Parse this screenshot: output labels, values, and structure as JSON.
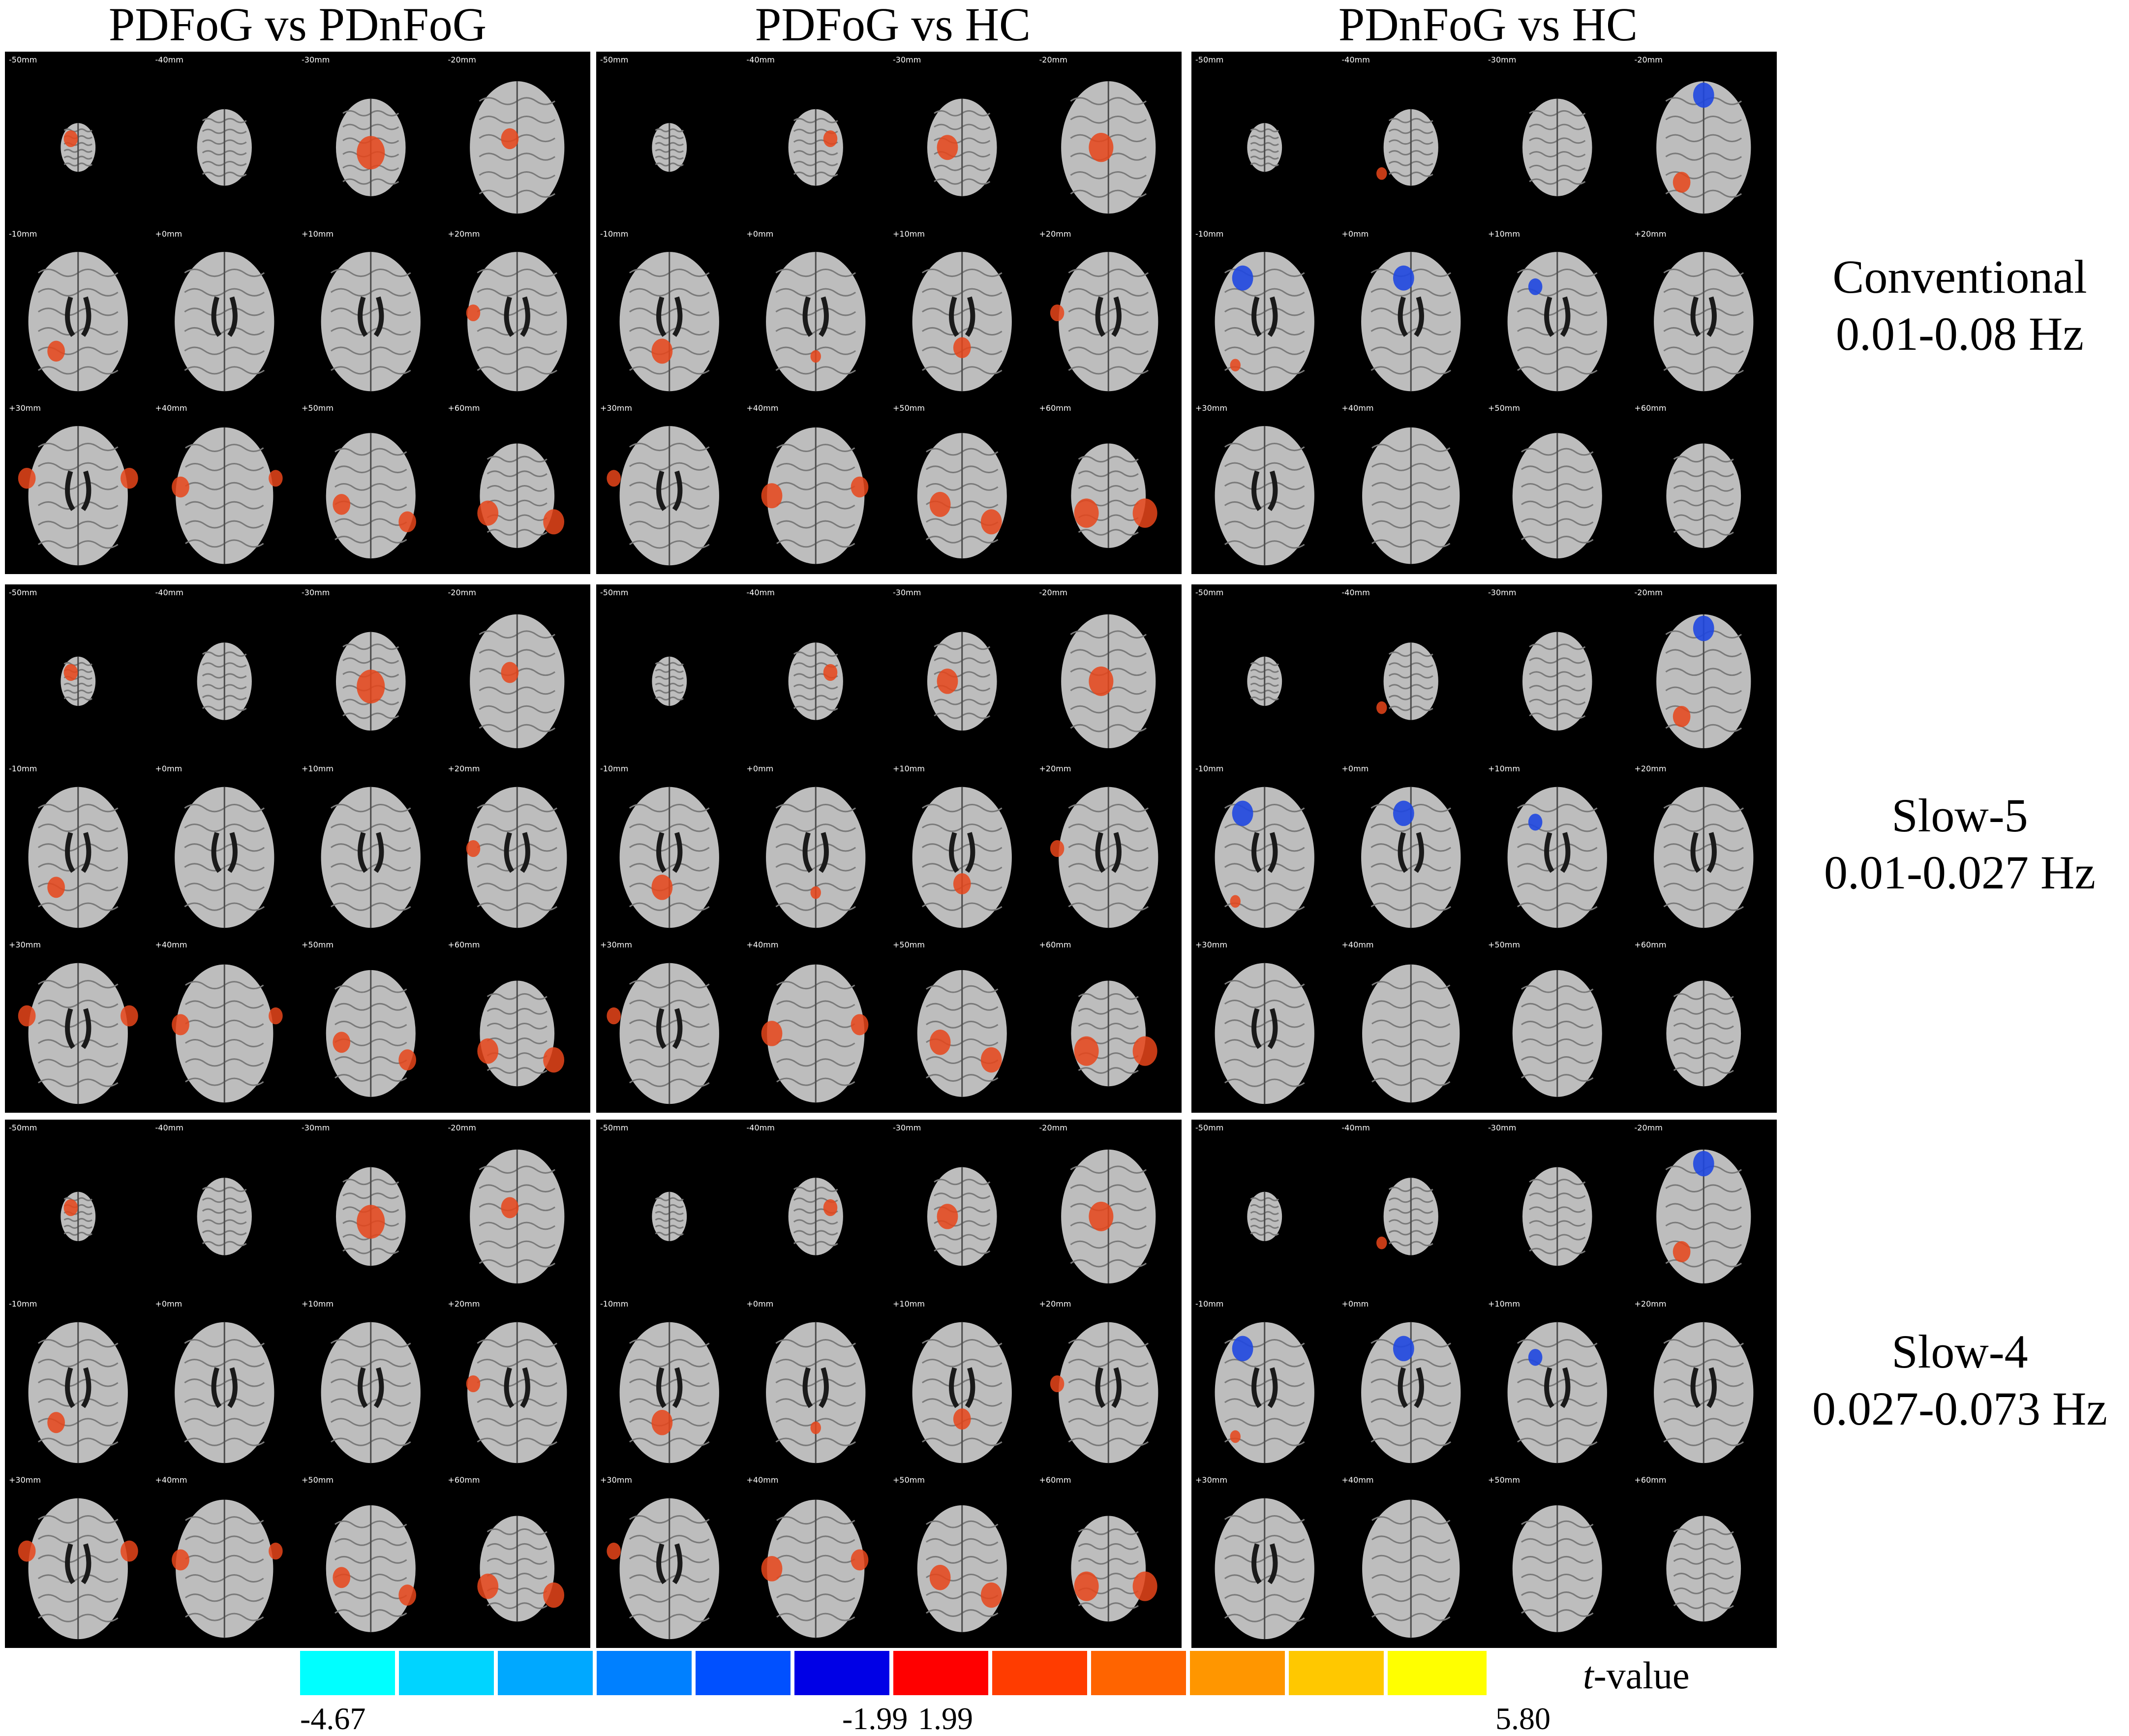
{
  "figure": {
    "column_headers": [
      "PDFoG vs PDnFoG",
      "PDFoG vs HC",
      "PDnFoG vs HC"
    ],
    "rows": [
      {
        "line1": "Conventional",
        "line2": "0.01-0.08 Hz"
      },
      {
        "line1": "Slow-5",
        "line2": "0.01-0.027 Hz"
      },
      {
        "line1": "Slow-4",
        "line2": "0.027-0.073 Hz"
      }
    ],
    "slice_labels": [
      "-50mm",
      "-40mm",
      "-30mm",
      "-20mm",
      "-10mm",
      "+0mm",
      "+10mm",
      "+20mm",
      "+30mm",
      "+40mm",
      "+50mm",
      "+60mm"
    ],
    "panel_background": "#000000",
    "brain_color": "#bdbdbd",
    "positive_blob_color": "#e8451a",
    "negative_blob_color": "#1f47e0"
  },
  "colorbar": {
    "title_italic": "t",
    "title_rest": "-value",
    "min_label": "-4.67",
    "neg_threshold_label": "-1.99",
    "pos_threshold_label": "1.99",
    "max_label": "5.80",
    "colors": [
      "#00ffff",
      "#00d4ff",
      "#00a8ff",
      "#0080ff",
      "#0050ff",
      "#0000e6",
      "#ff0000",
      "#ff3c00",
      "#ff6400",
      "#ff9600",
      "#ffc800",
      "#ffff00"
    ]
  },
  "blobs": {
    "0-0": {
      "pos": [
        [
          0,
          0.45,
          0.5,
          0.08
        ],
        [
          2,
          0.5,
          0.58,
          0.16
        ],
        [
          3,
          0.45,
          0.5,
          0.1
        ],
        [
          4,
          0.35,
          0.72,
          0.1
        ],
        [
          7,
          0.2,
          0.5,
          0.08
        ],
        [
          8,
          0.15,
          0.45,
          0.1
        ],
        [
          8,
          0.85,
          0.45,
          0.1
        ],
        [
          9,
          0.2,
          0.5,
          0.1
        ],
        [
          9,
          0.85,
          0.45,
          0.08
        ],
        [
          10,
          0.3,
          0.6,
          0.1
        ],
        [
          10,
          0.75,
          0.7,
          0.1
        ],
        [
          11,
          0.3,
          0.65,
          0.12
        ],
        [
          11,
          0.75,
          0.7,
          0.12
        ]
      ],
      "neg": []
    },
    "0-1": {
      "pos": [
        [
          1,
          0.6,
          0.5,
          0.08
        ],
        [
          2,
          0.4,
          0.55,
          0.12
        ],
        [
          3,
          0.45,
          0.55,
          0.14
        ],
        [
          4,
          0.45,
          0.72,
          0.12
        ],
        [
          5,
          0.5,
          0.75,
          0.06
        ],
        [
          6,
          0.5,
          0.7,
          0.1
        ],
        [
          7,
          0.15,
          0.5,
          0.08
        ],
        [
          8,
          0.12,
          0.45,
          0.08
        ],
        [
          9,
          0.2,
          0.55,
          0.12
        ],
        [
          9,
          0.8,
          0.5,
          0.1
        ],
        [
          10,
          0.35,
          0.6,
          0.12
        ],
        [
          10,
          0.7,
          0.7,
          0.12
        ],
        [
          11,
          0.35,
          0.65,
          0.14
        ],
        [
          11,
          0.75,
          0.65,
          0.14
        ]
      ],
      "neg": []
    },
    "0-2": {
      "pos": [
        [
          1,
          0.3,
          0.7,
          0.06
        ],
        [
          3,
          0.35,
          0.75,
          0.1
        ],
        [
          4,
          0.3,
          0.8,
          0.06
        ]
      ],
      "neg": [
        [
          3,
          0.5,
          0.25,
          0.12
        ],
        [
          4,
          0.35,
          0.3,
          0.12
        ],
        [
          5,
          0.45,
          0.3,
          0.12
        ],
        [
          6,
          0.35,
          0.35,
          0.08
        ]
      ]
    }
  }
}
